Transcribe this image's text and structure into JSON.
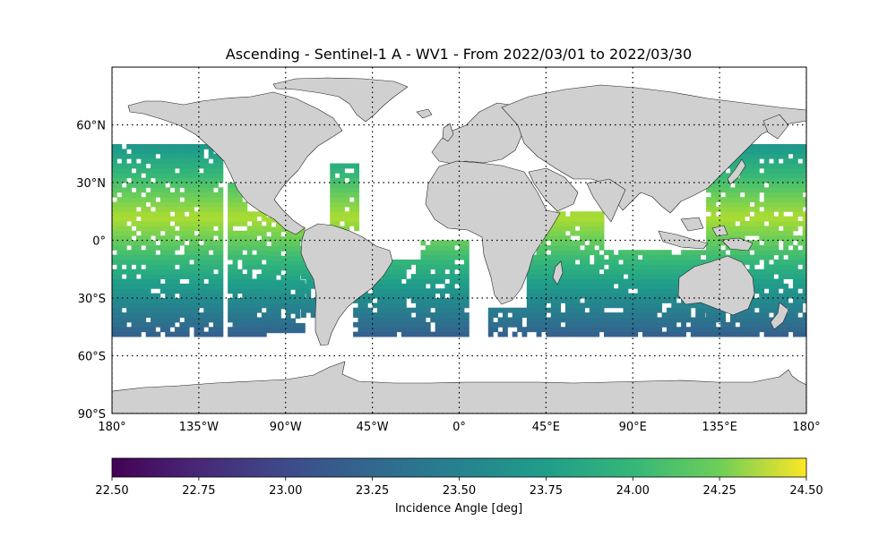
{
  "chart_data": {
    "type": "heatmap",
    "title": "Ascending - Sentinel-1 A - WV1 - From 2022/03/01 to 2022/03/30",
    "projection": "plate-carree",
    "xlim": [
      -180,
      180
    ],
    "ylim": [
      -90,
      90
    ],
    "grid": true,
    "x_ticks": [
      {
        "value": -180,
        "label": "180°"
      },
      {
        "value": -135,
        "label": "135°W"
      },
      {
        "value": -90,
        "label": "90°W"
      },
      {
        "value": -45,
        "label": "45°W"
      },
      {
        "value": 0,
        "label": "0°"
      },
      {
        "value": 45,
        "label": "45°E"
      },
      {
        "value": 90,
        "label": "90°E"
      },
      {
        "value": 135,
        "label": "135°E"
      },
      {
        "value": 180,
        "label": "180°"
      }
    ],
    "y_ticks": [
      {
        "value": 60,
        "label": "60°N"
      },
      {
        "value": 30,
        "label": "30°N"
      },
      {
        "value": 0,
        "label": "0°"
      },
      {
        "value": -30,
        "label": "30°S"
      },
      {
        "value": -60,
        "label": "60°S"
      },
      {
        "value": -90,
        "label": "90°S"
      }
    ],
    "colorbar": {
      "label": "Incidence Angle [deg]",
      "vmin": 22.5,
      "vmax": 24.5,
      "colormap": "viridis",
      "ticks": [
        "22.50",
        "22.75",
        "23.00",
        "23.25",
        "23.50",
        "23.75",
        "24.00",
        "24.25",
        "24.50"
      ]
    },
    "swaths": [
      {
        "lon": [
          -180,
          -123
        ],
        "lat": [
          -50,
          50
        ]
      },
      {
        "lon": [
          -120,
          -112
        ],
        "lat": [
          -50,
          30
        ]
      },
      {
        "lon": [
          -110,
          -100
        ],
        "lat": [
          -50,
          15
        ]
      },
      {
        "lon": [
          -100,
          -92
        ],
        "lat": [
          -48,
          10
        ]
      },
      {
        "lon": [
          -90,
          -82
        ],
        "lat": [
          -48,
          5
        ]
      },
      {
        "lon": [
          -82,
          -72
        ],
        "lat": [
          -40,
          -10
        ]
      },
      {
        "lon": [
          -67,
          -53
        ],
        "lat": [
          5,
          40
        ]
      },
      {
        "lon": [
          -55,
          -18
        ],
        "lat": [
          -50,
          -10
        ]
      },
      {
        "lon": [
          -20,
          5
        ],
        "lat": [
          -50,
          0
        ]
      },
      {
        "lon": [
          15,
          35
        ],
        "lat": [
          -50,
          -35
        ]
      },
      {
        "lon": [
          35,
          75
        ],
        "lat": [
          -50,
          15
        ]
      },
      {
        "lon": [
          75,
          132
        ],
        "lat": [
          -50,
          -5
        ]
      },
      {
        "lon": [
          128,
          180
        ],
        "lat": [
          -50,
          50
        ]
      }
    ]
  }
}
